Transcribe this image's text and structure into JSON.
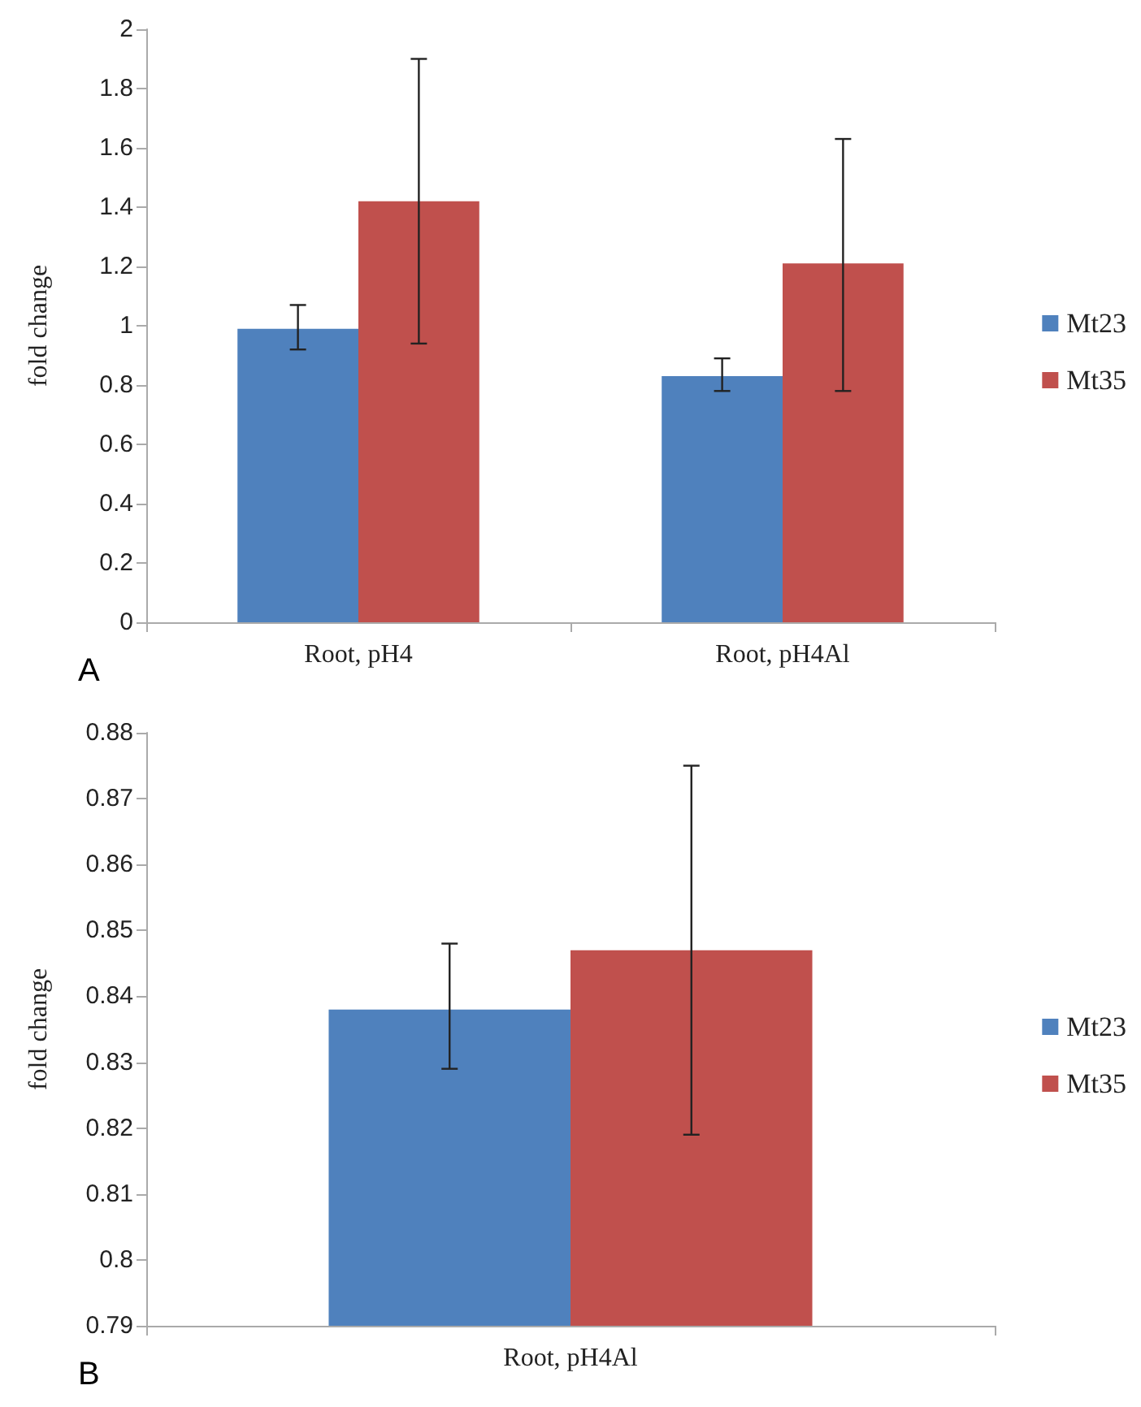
{
  "chart_data": [
    {
      "type": "bar",
      "ylabel": "fold change",
      "categories": [
        "Root, pH4",
        "Root, pH4Al"
      ],
      "series": [
        {
          "name": "Mt23",
          "color": "#4f81bd",
          "values": [
            0.99,
            0.83
          ],
          "errors": [
            [
              0.92,
              1.07
            ],
            [
              0.78,
              0.89
            ]
          ]
        },
        {
          "name": "Mt35",
          "color": "#c0504d",
          "values": [
            1.42,
            1.21
          ],
          "errors": [
            [
              0.94,
              1.9
            ],
            [
              0.78,
              1.63
            ]
          ]
        }
      ],
      "ylim": [
        0,
        2
      ],
      "yticks": [
        0,
        0.2,
        0.4,
        0.6,
        0.8,
        1,
        1.2,
        1.4,
        1.6,
        1.8,
        2
      ],
      "grid": false,
      "legend": "right",
      "annotations": [
        "A"
      ]
    },
    {
      "type": "bar",
      "ylabel": "fold change",
      "categories": [
        "Root, pH4Al"
      ],
      "series": [
        {
          "name": "Mt23",
          "color": "#4f81bd",
          "values": [
            0.838
          ],
          "errors": [
            [
              0.829,
              0.848
            ]
          ]
        },
        {
          "name": "Mt35",
          "color": "#c0504d",
          "values": [
            0.847
          ],
          "errors": [
            [
              0.819,
              0.875
            ]
          ]
        }
      ],
      "ylim": [
        0.79,
        0.88
      ],
      "yticks": [
        0.79,
        0.8,
        0.81,
        0.82,
        0.83,
        0.84,
        0.85,
        0.86,
        0.87,
        0.88
      ],
      "grid": false,
      "legend": "right",
      "annotations": [
        "B"
      ]
    }
  ]
}
